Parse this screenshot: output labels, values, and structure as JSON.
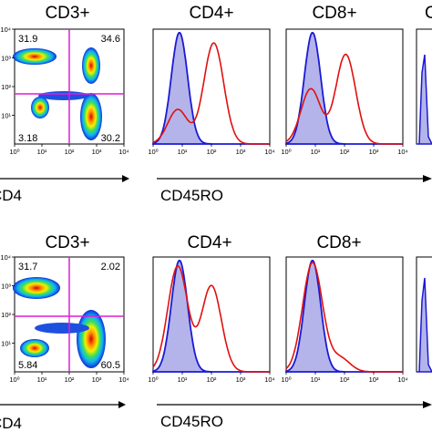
{
  "chart_data": [
    {
      "type": "dotplot",
      "row": 1,
      "title": "CD3+",
      "xlabel": "CD4",
      "x_axis": "log",
      "y_axis": "log",
      "xlim": [
        1,
        10000
      ],
      "ylim": [
        1,
        10000
      ],
      "x_tick_labels": [
        "10⁰",
        "10¹",
        "10²",
        "10³",
        "10⁴"
      ],
      "y_tick_labels": [
        "10¹",
        "10²",
        "10³",
        "10⁴"
      ],
      "quadrant_percentages": {
        "upper_left": "31.9",
        "upper_right": "34.6",
        "lower_left": "3.18",
        "lower_right": "30.2"
      },
      "gate_color": "#e01cd6"
    },
    {
      "type": "histogram",
      "row": 1,
      "title": "CD4+",
      "xlabel": "CD45RO",
      "x_axis": "log",
      "xlim": [
        1,
        10000
      ],
      "x_tick_labels": [
        "10⁰",
        "10¹",
        "10²",
        "10³",
        "10⁴"
      ],
      "series": [
        {
          "role": "filled",
          "color": "#1a1ad6",
          "fill": "#b4b4ea",
          "modes": [
            {
              "x": 8,
              "height": 0.97
            }
          ]
        },
        {
          "role": "outline",
          "color": "#e01010",
          "modes": [
            {
              "x": 7,
              "height": 0.3
            },
            {
              "x": 120,
              "height": 0.88
            }
          ]
        }
      ]
    },
    {
      "type": "histogram",
      "row": 1,
      "title": "CD8+",
      "x_axis": "log",
      "xlim": [
        1,
        10000
      ],
      "x_tick_labels": [
        "10⁰",
        "10¹",
        "10²",
        "10³",
        "10⁴"
      ],
      "series": [
        {
          "role": "filled",
          "color": "#1a1ad6",
          "fill": "#b4b4ea",
          "modes": [
            {
              "x": 8,
              "height": 0.97
            }
          ]
        },
        {
          "role": "outline",
          "color": "#e01010",
          "modes": [
            {
              "x": 7,
              "height": 0.48
            },
            {
              "x": 110,
              "height": 0.78
            }
          ]
        }
      ]
    },
    {
      "type": "histogram",
      "row": 1,
      "title": "C",
      "partial": true
    },
    {
      "type": "dotplot",
      "row": 2,
      "title": "CD3+",
      "xlabel": "CD4",
      "x_axis": "log",
      "y_axis": "log",
      "xlim": [
        1,
        10000
      ],
      "ylim": [
        1,
        10000
      ],
      "x_tick_labels": [
        "10⁰",
        "10¹",
        "10²",
        "10³",
        "10⁴"
      ],
      "y_tick_labels": [
        "10¹",
        "10²",
        "10³",
        "10⁴"
      ],
      "quadrant_percentages": {
        "upper_left": "31.7",
        "upper_right": "2.02",
        "lower_left": "5.84",
        "lower_right": "60.5"
      },
      "gate_color": "#e01cd6"
    },
    {
      "type": "histogram",
      "row": 2,
      "title": "CD4+",
      "xlabel": "CD45RO",
      "x_axis": "log",
      "xlim": [
        1,
        10000
      ],
      "x_tick_labels": [
        "10⁰",
        "10¹",
        "10²",
        "10³",
        "10⁴"
      ],
      "series": [
        {
          "role": "filled",
          "color": "#1a1ad6",
          "fill": "#b4b4ea",
          "modes": [
            {
              "x": 8,
              "height": 0.97
            }
          ]
        },
        {
          "role": "outline",
          "color": "#e01010",
          "modes": [
            {
              "x": 7,
              "height": 0.92
            },
            {
              "x": 100,
              "height": 0.75
            }
          ]
        }
      ]
    },
    {
      "type": "histogram",
      "row": 2,
      "title": "CD8+",
      "x_axis": "log",
      "xlim": [
        1,
        10000
      ],
      "x_tick_labels": [
        "10⁰",
        "10¹",
        "10²",
        "10³",
        "10⁴"
      ],
      "series": [
        {
          "role": "filled",
          "color": "#1a1ad6",
          "fill": "#b4b4ea",
          "modes": [
            {
              "x": 8,
              "height": 0.97
            }
          ]
        },
        {
          "role": "outline",
          "color": "#e01010",
          "modes": [
            {
              "x": 8,
              "height": 0.95
            },
            {
              "x": 70,
              "height": 0.12
            }
          ]
        }
      ]
    },
    {
      "type": "histogram",
      "row": 2,
      "partial": true
    }
  ]
}
